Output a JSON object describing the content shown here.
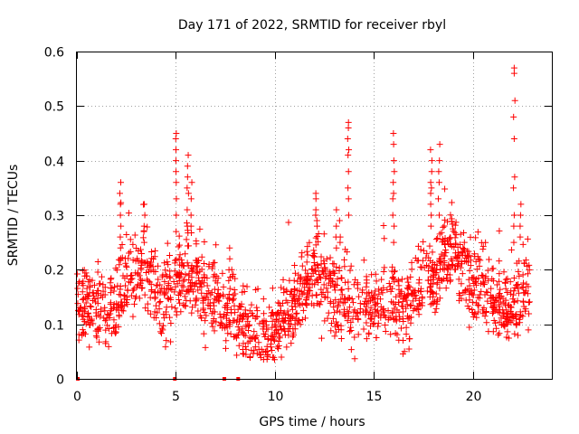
{
  "chart_data": {
    "type": "scatter",
    "title": "Day 171 of 2022, SRMTID for receiver rbyl",
    "xlabel": "GPS time / hours",
    "ylabel": "SRMTID / TECUs",
    "xlim": [
      0,
      24
    ],
    "ylim": [
      0,
      0.6
    ],
    "xticks": [
      0,
      5,
      10,
      15,
      20
    ],
    "yticks": [
      0,
      0.1,
      0.2,
      0.3,
      0.4,
      0.5,
      0.6
    ],
    "ytick_labels": [
      "0",
      "0.1",
      "0.2",
      "0.3",
      "0.4",
      "0.5",
      "0.6"
    ],
    "grid": true,
    "marker": "+",
    "color": "#ff0000",
    "zero_points": {
      "x": [
        0.05,
        4.95,
        7.45,
        8.15
      ],
      "y": [
        0,
        0,
        0,
        0
      ]
    },
    "trend": {
      "x": [
        0.0,
        0.5,
        1.0,
        1.5,
        2.0,
        2.5,
        3.0,
        3.5,
        4.0,
        4.5,
        5.0,
        5.5,
        6.0,
        6.5,
        7.0,
        7.5,
        8.0,
        8.5,
        9.0,
        9.5,
        10.0,
        10.5,
        11.0,
        11.5,
        12.0,
        12.5,
        13.0,
        13.5,
        14.0,
        14.5,
        15.0,
        15.5,
        16.0,
        16.5,
        17.0,
        17.5,
        18.0,
        18.5,
        19.0,
        19.5,
        20.0,
        20.5,
        21.0,
        21.5,
        22.0,
        22.5,
        22.9
      ],
      "y": [
        0.15,
        0.13,
        0.12,
        0.12,
        0.14,
        0.18,
        0.19,
        0.2,
        0.16,
        0.14,
        0.17,
        0.21,
        0.19,
        0.15,
        0.13,
        0.12,
        0.11,
        0.1,
        0.08,
        0.07,
        0.09,
        0.11,
        0.13,
        0.16,
        0.2,
        0.17,
        0.15,
        0.14,
        0.13,
        0.13,
        0.14,
        0.14,
        0.15,
        0.12,
        0.15,
        0.18,
        0.19,
        0.22,
        0.24,
        0.2,
        0.18,
        0.17,
        0.14,
        0.12,
        0.13,
        0.15,
        0.18
      ]
    },
    "spread": 0.035,
    "point_count": 1700,
    "spikes": [
      {
        "x": 2.2,
        "values": [
          0.36,
          0.34,
          0.32,
          0.3,
          0.28,
          0.26,
          0.24
        ]
      },
      {
        "x": 3.4,
        "values": [
          0.32,
          0.3,
          0.28,
          0.27,
          0.25
        ]
      },
      {
        "x": 5.0,
        "values": [
          0.45,
          0.44,
          0.42,
          0.4,
          0.38,
          0.36,
          0.33,
          0.3,
          0.27
        ]
      },
      {
        "x": 5.6,
        "values": [
          0.41,
          0.39,
          0.37,
          0.35,
          0.34,
          0.31,
          0.28
        ]
      },
      {
        "x": 5.8,
        "values": [
          0.36,
          0.33,
          0.3,
          0.28
        ]
      },
      {
        "x": 7.7,
        "values": [
          0.24,
          0.22,
          0.2,
          0.18
        ]
      },
      {
        "x": 12.1,
        "values": [
          0.34,
          0.33,
          0.31,
          0.3,
          0.29,
          0.28
        ]
      },
      {
        "x": 13.1,
        "values": [
          0.31,
          0.28,
          0.26,
          0.24
        ]
      },
      {
        "x": 13.3,
        "values": [
          0.29,
          0.26,
          0.25
        ]
      },
      {
        "x": 13.7,
        "values": [
          0.47,
          0.46,
          0.44,
          0.42,
          0.41,
          0.38,
          0.35,
          0.33,
          0.3
        ]
      },
      {
        "x": 16.0,
        "values": [
          0.45,
          0.43,
          0.4,
          0.38,
          0.36,
          0.34,
          0.33,
          0.3,
          0.28,
          0.25
        ]
      },
      {
        "x": 17.9,
        "values": [
          0.42,
          0.4,
          0.38,
          0.36,
          0.35,
          0.34,
          0.32,
          0.3,
          0.28
        ]
      },
      {
        "x": 18.3,
        "values": [
          0.43,
          0.4,
          0.38,
          0.36,
          0.33,
          0.3
        ]
      },
      {
        "x": 22.1,
        "values": [
          0.57,
          0.56,
          0.51,
          0.48,
          0.44,
          0.37,
          0.35,
          0.3,
          0.28,
          0.25
        ]
      },
      {
        "x": 22.4,
        "values": [
          0.32,
          0.3,
          0.28,
          0.26
        ]
      }
    ]
  }
}
